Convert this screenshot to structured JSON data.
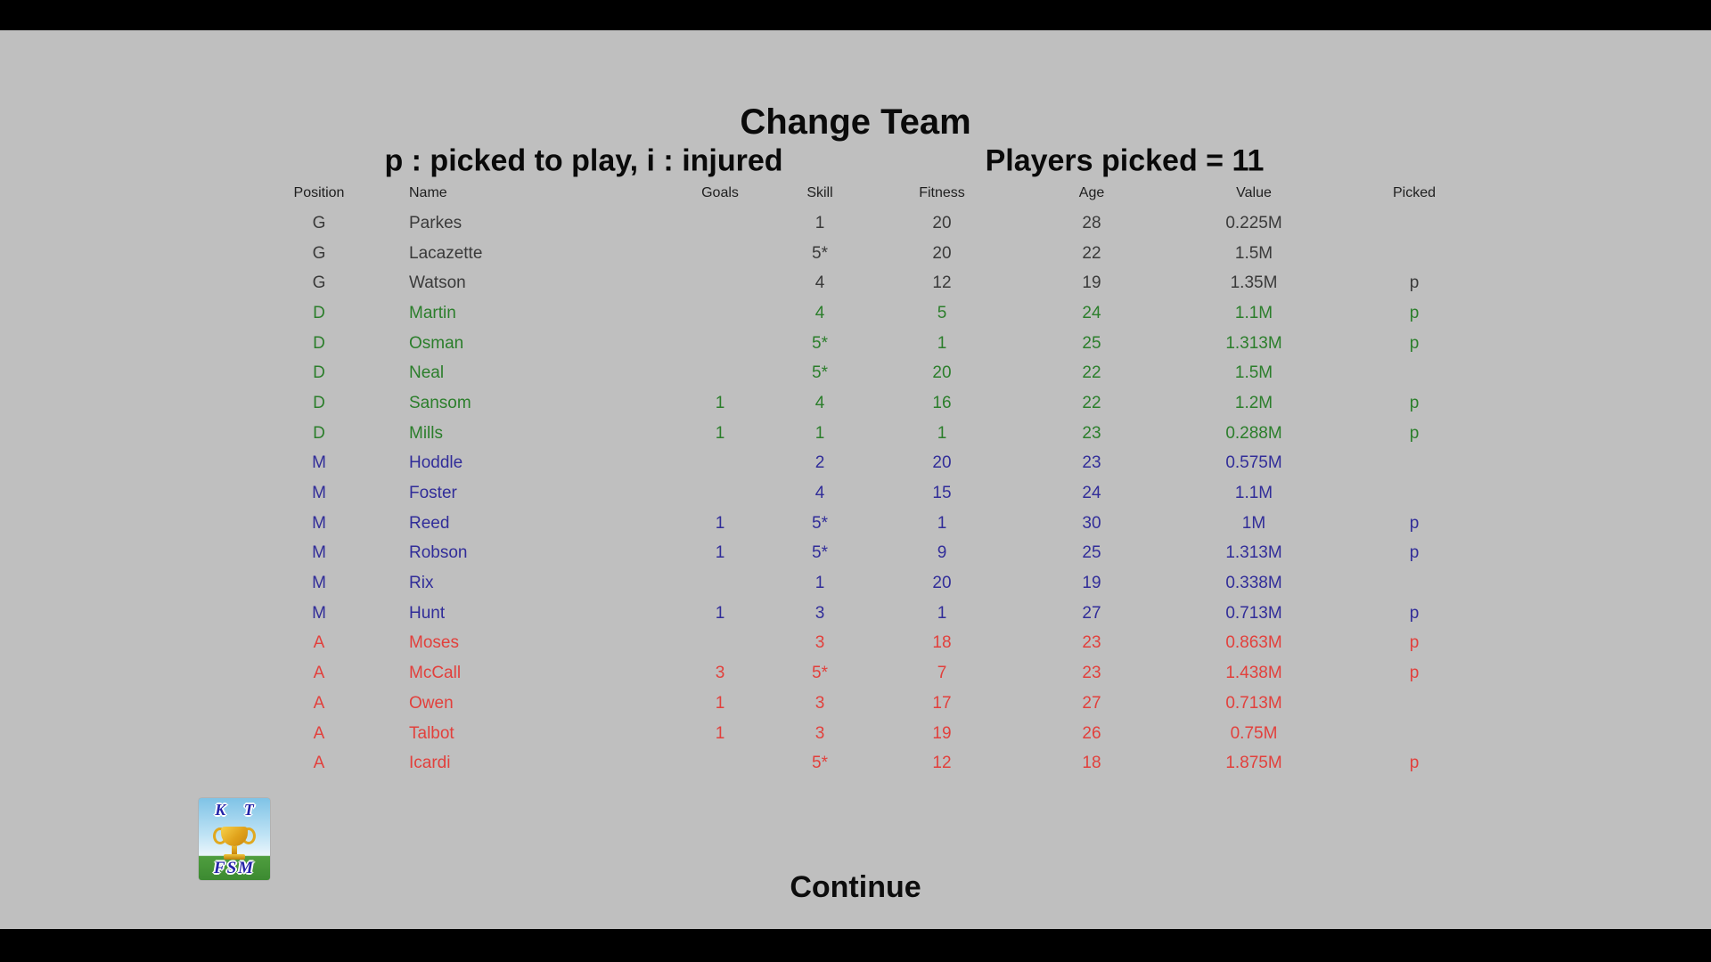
{
  "screen": {
    "title": "Change Team",
    "legend": "p : picked to play, i : injured",
    "picked_summary": "Players picked = 11",
    "continue_label": "Continue"
  },
  "colors": {
    "background": "#bfbfbf",
    "letterbox_bar": "#000000",
    "header_text": "#1f1f1f",
    "G": "#3a3a3a",
    "D": "#2b7e2b",
    "M": "#312d99",
    "A": "#e2403c"
  },
  "logo": {
    "top_text": "K T",
    "bottom_text": "FSM"
  },
  "table": {
    "columns": [
      "Position",
      "Name",
      "Goals",
      "Skill",
      "Fitness",
      "Age",
      "Value",
      "Picked"
    ],
    "column_keys": [
      "position",
      "name",
      "goals",
      "skill",
      "fitness",
      "age",
      "value",
      "picked"
    ],
    "rows": [
      {
        "group": "G",
        "position": "G",
        "name": "Parkes",
        "goals": "",
        "skill": "1",
        "fitness": "20",
        "age": "28",
        "value": "0.225M",
        "picked": ""
      },
      {
        "group": "G",
        "position": "G",
        "name": "Lacazette",
        "goals": "",
        "skill": "5*",
        "fitness": "20",
        "age": "22",
        "value": "1.5M",
        "picked": ""
      },
      {
        "group": "G",
        "position": "G",
        "name": "Watson",
        "goals": "",
        "skill": "4",
        "fitness": "12",
        "age": "19",
        "value": "1.35M",
        "picked": "p"
      },
      {
        "group": "D",
        "position": "D",
        "name": "Martin",
        "goals": "",
        "skill": "4",
        "fitness": "5",
        "age": "24",
        "value": "1.1M",
        "picked": "p"
      },
      {
        "group": "D",
        "position": "D",
        "name": "Osman",
        "goals": "",
        "skill": "5*",
        "fitness": "1",
        "age": "25",
        "value": "1.313M",
        "picked": "p"
      },
      {
        "group": "D",
        "position": "D",
        "name": "Neal",
        "goals": "",
        "skill": "5*",
        "fitness": "20",
        "age": "22",
        "value": "1.5M",
        "picked": ""
      },
      {
        "group": "D",
        "position": "D",
        "name": "Sansom",
        "goals": "1",
        "skill": "4",
        "fitness": "16",
        "age": "22",
        "value": "1.2M",
        "picked": "p"
      },
      {
        "group": "D",
        "position": "D",
        "name": "Mills",
        "goals": "1",
        "skill": "1",
        "fitness": "1",
        "age": "23",
        "value": "0.288M",
        "picked": "p"
      },
      {
        "group": "M",
        "position": "M",
        "name": "Hoddle",
        "goals": "",
        "skill": "2",
        "fitness": "20",
        "age": "23",
        "value": "0.575M",
        "picked": ""
      },
      {
        "group": "M",
        "position": "M",
        "name": "Foster",
        "goals": "",
        "skill": "4",
        "fitness": "15",
        "age": "24",
        "value": "1.1M",
        "picked": ""
      },
      {
        "group": "M",
        "position": "M",
        "name": "Reed",
        "goals": "1",
        "skill": "5*",
        "fitness": "1",
        "age": "30",
        "value": "1M",
        "picked": "p"
      },
      {
        "group": "M",
        "position": "M",
        "name": "Robson",
        "goals": "1",
        "skill": "5*",
        "fitness": "9",
        "age": "25",
        "value": "1.313M",
        "picked": "p"
      },
      {
        "group": "M",
        "position": "M",
        "name": "Rix",
        "goals": "",
        "skill": "1",
        "fitness": "20",
        "age": "19",
        "value": "0.338M",
        "picked": ""
      },
      {
        "group": "M",
        "position": "M",
        "name": "Hunt",
        "goals": "1",
        "skill": "3",
        "fitness": "1",
        "age": "27",
        "value": "0.713M",
        "picked": "p"
      },
      {
        "group": "A",
        "position": "A",
        "name": "Moses",
        "goals": "",
        "skill": "3",
        "fitness": "18",
        "age": "23",
        "value": "0.863M",
        "picked": "p"
      },
      {
        "group": "A",
        "position": "A",
        "name": "McCall",
        "goals": "3",
        "skill": "5*",
        "fitness": "7",
        "age": "23",
        "value": "1.438M",
        "picked": "p"
      },
      {
        "group": "A",
        "position": "A",
        "name": "Owen",
        "goals": "1",
        "skill": "3",
        "fitness": "17",
        "age": "27",
        "value": "0.713M",
        "picked": ""
      },
      {
        "group": "A",
        "position": "A",
        "name": "Talbot",
        "goals": "1",
        "skill": "3",
        "fitness": "19",
        "age": "26",
        "value": "0.75M",
        "picked": ""
      },
      {
        "group": "A",
        "position": "A",
        "name": "Icardi",
        "goals": "",
        "skill": "5*",
        "fitness": "12",
        "age": "18",
        "value": "1.875M",
        "picked": "p"
      }
    ]
  }
}
